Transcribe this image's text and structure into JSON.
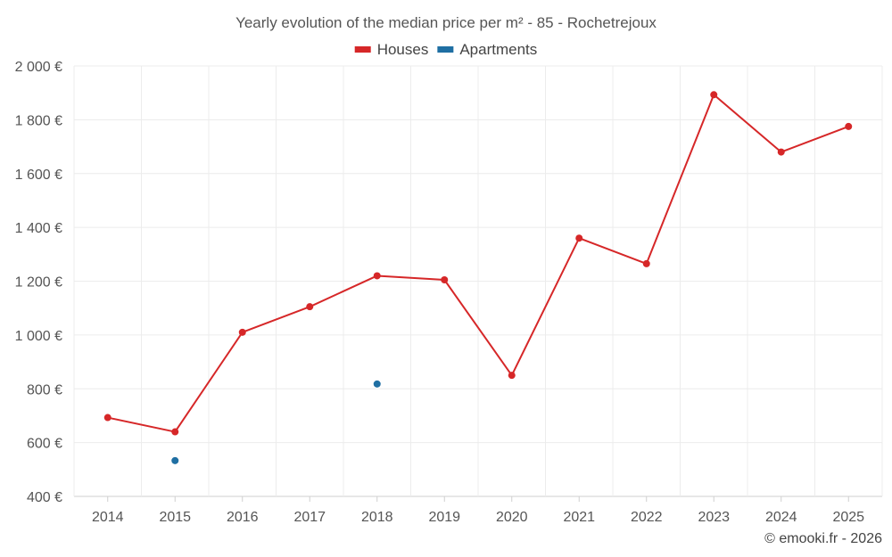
{
  "chart_data": {
    "type": "line",
    "title": "Yearly evolution of the median price per m² - 85 - Rochetrejoux",
    "categories": [
      "2014",
      "2015",
      "2016",
      "2017",
      "2018",
      "2019",
      "2020",
      "2021",
      "2022",
      "2023",
      "2024",
      "2025"
    ],
    "y_ticks": [
      "400 €",
      "600 €",
      "800 €",
      "1 000 €",
      "1 200 €",
      "1 400 €",
      "1 600 €",
      "1 800 €",
      "2 000 €"
    ],
    "ylim": [
      400,
      2000
    ],
    "y_step": 200,
    "grid": true,
    "legend_position": "top-center",
    "series": [
      {
        "name": "Houses",
        "color": "#d62728",
        "values": [
          693,
          640,
          1010,
          1105,
          1220,
          1205,
          850,
          1360,
          1265,
          1893,
          1680,
          1775
        ]
      },
      {
        "name": "Apartments",
        "color": "#1f6fa3",
        "values": [
          null,
          533,
          null,
          null,
          818,
          null,
          null,
          null,
          null,
          null,
          null,
          null
        ]
      }
    ],
    "credit": "© emooki.fr - 2026"
  }
}
